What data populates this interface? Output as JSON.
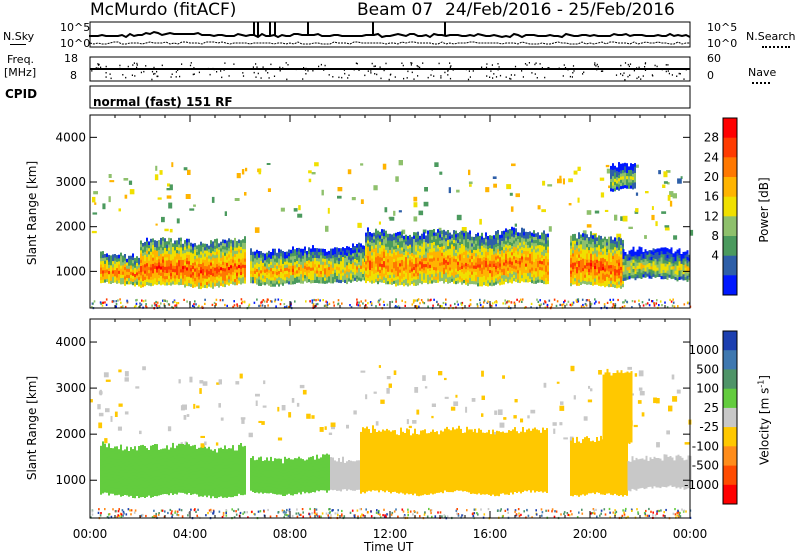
{
  "header": {
    "station": "McMurdo (fitACF)",
    "beam": "Beam 07",
    "dates": "24/Feb/2016 - 25/Feb/2016"
  },
  "noise_panel": {
    "left_label": "N.Sky",
    "right_label": "N.Search",
    "left_ticks": [
      "10^5",
      "10^0"
    ],
    "right_ticks": [
      "10^5",
      "10^0"
    ]
  },
  "freq_panel": {
    "left_label_line1": "Freq.",
    "left_label_line2": "[MHz]",
    "right_label": "Nave",
    "left_ticks": [
      "18",
      "8"
    ],
    "right_ticks": [
      "60",
      "0"
    ]
  },
  "cpid": {
    "label": "CPID",
    "value": "normal (fast) 151 RF"
  },
  "chart_data": [
    {
      "type": "heatmap",
      "name": "power",
      "ylabel": "Slant Range [km]",
      "y_ticks": [
        "4000",
        "3000",
        "2000",
        "1000"
      ],
      "ylim": [
        180,
        4500
      ],
      "xlim": [
        0,
        24
      ],
      "colorbar_label": "Power [dB]",
      "colorbar_ticks": [
        "28",
        "24",
        "20",
        "16",
        "12",
        "8",
        "4"
      ],
      "colorbar_colors": [
        "#ff0000",
        "#ff3b00",
        "#ff7800",
        "#ffb400",
        "#f0e000",
        "#8ec06c",
        "#4b9a5e",
        "#2e5fa8",
        "#0018ff"
      ],
      "colorbar_range": [
        0,
        30
      ],
      "bands": [
        {
          "t0": 0.4,
          "t1": 2.0,
          "r0": 700,
          "r1": 1400,
          "level": 22
        },
        {
          "t0": 2.0,
          "t1": 6.2,
          "r0": 650,
          "r1": 1700,
          "level": 24
        },
        {
          "t0": 6.4,
          "t1": 9.6,
          "r0": 700,
          "r1": 1500,
          "level": 20
        },
        {
          "t0": 9.6,
          "t1": 11.0,
          "r0": 750,
          "r1": 1600,
          "level": 18
        },
        {
          "t0": 11.0,
          "t1": 18.3,
          "r0": 700,
          "r1": 1900,
          "level": 22
        },
        {
          "t0": 19.2,
          "t1": 21.3,
          "r0": 650,
          "r1": 1800,
          "level": 24
        },
        {
          "t0": 21.3,
          "t1": 24.0,
          "r0": 800,
          "r1": 1500,
          "level": 16
        },
        {
          "t0": 20.8,
          "t1": 21.8,
          "r0": 2800,
          "r1": 3400,
          "level": 14
        }
      ]
    },
    {
      "type": "heatmap",
      "name": "velocity",
      "ylabel": "Slant Range [km]",
      "y_ticks": [
        "4000",
        "3000",
        "2000",
        "1000"
      ],
      "ylim": [
        180,
        4500
      ],
      "xlim": [
        0,
        24
      ],
      "xlabel": "Time UT",
      "x_ticks": [
        "00:00",
        "04:00",
        "08:00",
        "12:00",
        "16:00",
        "20:00",
        "00:00"
      ],
      "colorbar_label": "Velocity [m s-1]",
      "colorbar_ticks": [
        "1000",
        "500",
        "100",
        "25",
        "-25",
        "-100",
        "-500",
        "-1000"
      ],
      "colorbar_colors": [
        "#1c3fb0",
        "#3f78b0",
        "#4f9468",
        "#63cc3e",
        "#c8c8c8",
        "#ffc800",
        "#ff8c1a",
        "#ff4b00",
        "#ff0000"
      ],
      "colorbar_range": [
        -1100,
        1100
      ],
      "bands": [
        {
          "t0": 0.4,
          "t1": 6.2,
          "r0": 650,
          "r1": 1750,
          "level": 300
        },
        {
          "t0": 6.4,
          "t1": 9.6,
          "r0": 700,
          "r1": 1500,
          "level": 300
        },
        {
          "t0": 9.6,
          "t1": 10.8,
          "r0": 800,
          "r1": 1500,
          "level": 0
        },
        {
          "t0": 10.8,
          "t1": 18.3,
          "r0": 700,
          "r1": 2100,
          "level": -300
        },
        {
          "t0": 19.2,
          "t1": 21.5,
          "r0": 650,
          "r1": 1900,
          "level": -300
        },
        {
          "t0": 21.5,
          "t1": 24.0,
          "r0": 800,
          "r1": 1500,
          "level": 50
        },
        {
          "t0": 20.5,
          "t1": 21.7,
          "r0": 1800,
          "r1": 3400,
          "level": -300
        }
      ]
    }
  ]
}
